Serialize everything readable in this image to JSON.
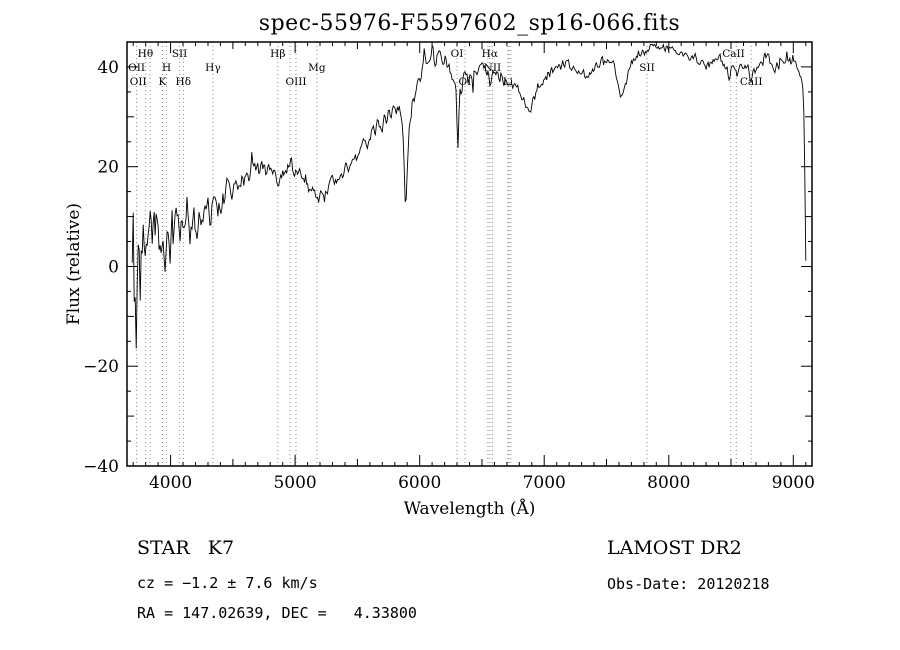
{
  "title": "spec-55976-F5597602_sp16-066.fits",
  "footer": {
    "class_label": "STAR   K7",
    "velocity": "cz = −1.2 ± 7.6 km/s",
    "coordinates": "RA = 147.02639, DEC =   4.33800",
    "survey": "LAMOST DR2",
    "obs_date": "Obs-Date: 20120218"
  },
  "chart_data": {
    "type": "line",
    "title": "spec-55976-F5597602_sp16-066.fits",
    "xlabel": "Wavelength (Å)",
    "ylabel": "Flux (relative)",
    "xlim": [
      3650,
      9150
    ],
    "ylim": [
      -40,
      45
    ],
    "grid": false,
    "xticks": [
      {
        "v": 4000,
        "label": "4000"
      },
      {
        "v": 5000,
        "label": "5000"
      },
      {
        "v": 6000,
        "label": "6000"
      },
      {
        "v": 7000,
        "label": "7000"
      },
      {
        "v": 8000,
        "label": "8000"
      },
      {
        "v": 9000,
        "label": "9000"
      }
    ],
    "yticks": [
      {
        "v": -40,
        "label": "−40"
      },
      {
        "v": -20,
        "label": "−20"
      },
      {
        "v": 0,
        "label": "0"
      },
      {
        "v": 20,
        "label": "20"
      },
      {
        "v": 40,
        "label": "40"
      }
    ],
    "envelope_points": [
      [
        3692,
        4
      ],
      [
        3700,
        7
      ],
      [
        3706,
        -6
      ],
      [
        3712,
        -14
      ],
      [
        3718,
        3
      ],
      [
        3724,
        -9
      ],
      [
        3730,
        2
      ],
      [
        3736,
        12
      ],
      [
        3742,
        -2
      ],
      [
        3748,
        6
      ],
      [
        3755,
        -4
      ],
      [
        3762,
        8
      ],
      [
        3770,
        0
      ],
      [
        3778,
        5
      ],
      [
        3786,
        1
      ],
      [
        3795,
        4
      ],
      [
        3805,
        2
      ],
      [
        3815,
        5
      ],
      [
        3825,
        1
      ],
      [
        3835,
        4
      ],
      [
        3845,
        6
      ],
      [
        3855,
        2
      ],
      [
        3865,
        5
      ],
      [
        3875,
        3
      ],
      [
        3885,
        6
      ],
      [
        3895,
        2
      ],
      [
        3905,
        5
      ],
      [
        3915,
        3
      ],
      [
        3925,
        6
      ],
      [
        3935,
        4
      ],
      [
        3945,
        6
      ],
      [
        3955,
        3
      ],
      [
        3965,
        5
      ],
      [
        3975,
        4
      ],
      [
        3985,
        6
      ],
      [
        4000,
        5
      ],
      [
        4025,
        7
      ],
      [
        4050,
        6
      ],
      [
        4075,
        7
      ],
      [
        4100,
        6
      ],
      [
        4130,
        8
      ],
      [
        4160,
        8
      ],
      [
        4200,
        9
      ],
      [
        4250,
        10
      ],
      [
        4300,
        11
      ],
      [
        4350,
        12
      ],
      [
        4400,
        13
      ],
      [
        4450,
        15
      ],
      [
        4500,
        16
      ],
      [
        4550,
        17
      ],
      [
        4600,
        18
      ],
      [
        4650,
        19
      ],
      [
        4700,
        19
      ],
      [
        4750,
        20
      ],
      [
        4800,
        19
      ],
      [
        4830,
        18
      ],
      [
        4861,
        17
      ],
      [
        4880,
        18
      ],
      [
        4900,
        19
      ],
      [
        4930,
        19
      ],
      [
        4960,
        20
      ],
      [
        5000,
        19
      ],
      [
        5040,
        18
      ],
      [
        5080,
        16
      ],
      [
        5120,
        15
      ],
      [
        5160,
        14
      ],
      [
        5200,
        14
      ],
      [
        5250,
        15
      ],
      [
        5300,
        17
      ],
      [
        5360,
        18
      ],
      [
        5420,
        20
      ],
      [
        5480,
        22
      ],
      [
        5540,
        24
      ],
      [
        5600,
        26
      ],
      [
        5660,
        28
      ],
      [
        5720,
        29
      ],
      [
        5780,
        31
      ],
      [
        5840,
        32
      ],
      [
        5868,
        26
      ],
      [
        5885,
        13
      ],
      [
        5895,
        14
      ],
      [
        5912,
        27
      ],
      [
        5940,
        33
      ],
      [
        5970,
        36
      ],
      [
        6000,
        38
      ],
      [
        6040,
        40
      ],
      [
        6080,
        41
      ],
      [
        6120,
        42
      ],
      [
        6160,
        43
      ],
      [
        6200,
        42
      ],
      [
        6240,
        40
      ],
      [
        6270,
        38
      ],
      [
        6295,
        34
      ],
      [
        6303,
        24
      ],
      [
        6310,
        22
      ],
      [
        6320,
        34
      ],
      [
        6350,
        37
      ],
      [
        6390,
        38
      ],
      [
        6430,
        39
      ],
      [
        6470,
        40
      ],
      [
        6510,
        40
      ],
      [
        6545,
        39
      ],
      [
        6563,
        36
      ],
      [
        6580,
        38
      ],
      [
        6610,
        39
      ],
      [
        6650,
        38
      ],
      [
        6690,
        37
      ],
      [
        6730,
        36
      ],
      [
        6770,
        36
      ],
      [
        6810,
        35
      ],
      [
        6850,
        32
      ],
      [
        6875,
        30
      ],
      [
        6895,
        32
      ],
      [
        6920,
        34
      ],
      [
        6950,
        36
      ],
      [
        6980,
        37
      ],
      [
        7010,
        38
      ],
      [
        7050,
        39
      ],
      [
        7090,
        40
      ],
      [
        7130,
        40
      ],
      [
        7170,
        41
      ],
      [
        7210,
        40
      ],
      [
        7250,
        39
      ],
      [
        7290,
        39
      ],
      [
        7330,
        38
      ],
      [
        7370,
        39
      ],
      [
        7410,
        40
      ],
      [
        7460,
        41
      ],
      [
        7510,
        41
      ],
      [
        7560,
        40
      ],
      [
        7595,
        36
      ],
      [
        7615,
        34
      ],
      [
        7640,
        35
      ],
      [
        7670,
        38
      ],
      [
        7700,
        41
      ],
      [
        7750,
        42
      ],
      [
        7800,
        43
      ],
      [
        7850,
        44
      ],
      [
        7900,
        44
      ],
      [
        7950,
        44
      ],
      [
        8000,
        44
      ],
      [
        8050,
        43
      ],
      [
        8100,
        43
      ],
      [
        8150,
        42
      ],
      [
        8200,
        42
      ],
      [
        8250,
        41
      ],
      [
        8300,
        40
      ],
      [
        8350,
        41
      ],
      [
        8400,
        42
      ],
      [
        8450,
        40
      ],
      [
        8490,
        38
      ],
      [
        8510,
        40
      ],
      [
        8530,
        39
      ],
      [
        8545,
        38
      ],
      [
        8565,
        40
      ],
      [
        8600,
        41
      ],
      [
        8630,
        40
      ],
      [
        8660,
        37
      ],
      [
        8680,
        39
      ],
      [
        8700,
        40
      ],
      [
        8740,
        41
      ],
      [
        8780,
        42
      ],
      [
        8820,
        41
      ],
      [
        8860,
        40
      ],
      [
        8900,
        41
      ],
      [
        8940,
        40
      ],
      [
        8980,
        41
      ],
      [
        9020,
        40
      ],
      [
        9050,
        39
      ],
      [
        9075,
        37
      ],
      [
        9088,
        30
      ],
      [
        9094,
        14
      ],
      [
        9100,
        2
      ]
    ],
    "noise_regions": [
      [
        3690,
        3780,
        10
      ],
      [
        3780,
        3900,
        8
      ],
      [
        3900,
        4050,
        6.5
      ],
      [
        4050,
        4250,
        4.5
      ],
      [
        4250,
        4500,
        3
      ],
      [
        4500,
        5000,
        1.8
      ],
      [
        5000,
        5600,
        1.5
      ],
      [
        5600,
        6000,
        1.6
      ],
      [
        6000,
        6500,
        1.9
      ],
      [
        6500,
        7000,
        1.2
      ],
      [
        7000,
        7600,
        1.0
      ],
      [
        7600,
        8300,
        0.9
      ],
      [
        8300,
        9105,
        1.2
      ]
    ],
    "spectral_lines": {
      "marked": [
        3727,
        3798,
        3835,
        3934,
        3968,
        4072,
        4102,
        4340,
        4861,
        4959,
        5007,
        5175,
        6300,
        6363,
        6548,
        6563,
        6584,
        6708,
        6716,
        6731,
        7825,
        8498,
        8542,
        8662
      ],
      "labels": [
        {
          "text": "Hθ",
          "wavelength": 3798,
          "row": 0
        },
        {
          "text": "SII",
          "wavelength": 4072,
          "row": 0
        },
        {
          "text": "Hβ",
          "wavelength": 4861,
          "row": 0
        },
        {
          "text": "OI",
          "wavelength": 6300,
          "row": 0
        },
        {
          "text": "Hα",
          "wavelength": 6563,
          "row": 0
        },
        {
          "text": "CaII",
          "wavelength": 8520,
          "row": 0
        },
        {
          "text": "OII",
          "wavelength": 3727,
          "row": 1
        },
        {
          "text": "H",
          "wavelength": 3968,
          "row": 1
        },
        {
          "text": "Hγ",
          "wavelength": 4340,
          "row": 1
        },
        {
          "text": "Mg",
          "wavelength": 5175,
          "row": 1
        },
        {
          "text": "NII",
          "wavelength": 6584,
          "row": 1
        },
        {
          "text": "SII",
          "wavelength": 7825,
          "row": 1
        },
        {
          "text": "OII",
          "wavelength": 3740,
          "row": 2
        },
        {
          "text": "K",
          "wavelength": 3934,
          "row": 2
        },
        {
          "text": "Hδ",
          "wavelength": 4102,
          "row": 2
        },
        {
          "text": "OIII",
          "wavelength": 5007,
          "row": 2
        },
        {
          "text": "OI",
          "wavelength": 6363,
          "row": 2
        },
        {
          "text": "Li",
          "wavelength": 6708,
          "row": 2
        },
        {
          "text": "CaII",
          "wavelength": 8662,
          "row": 2
        }
      ]
    },
    "line_color": "#000000",
    "marker_line_color": "#8a8a8a"
  }
}
